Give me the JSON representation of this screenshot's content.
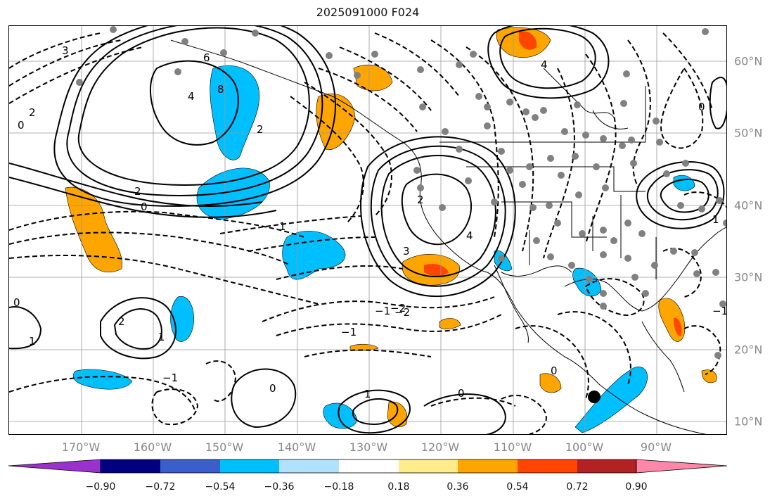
{
  "title": "2025091000 F024",
  "lon_labels": [
    "170°W",
    "160°W",
    "150°W",
    "140°W",
    "130°W",
    "120°W",
    "110°W",
    "100°W",
    "90°W"
  ],
  "lat_labels": [
    "60°N",
    "50°N",
    "40°N",
    "30°N",
    "20°N",
    "10°N"
  ],
  "colorbar": {
    "ticks": [
      "−0.90",
      "−0.72",
      "−0.54",
      "−0.36",
      "−0.18",
      "0.18",
      "0.36",
      "0.54",
      "0.72",
      "0.90"
    ],
    "colors": [
      "#9932cc",
      "#000080",
      "#3a5fcd",
      "#00bfff",
      "#b0e2ff",
      "#ffffff",
      "#ffec8b",
      "#ffa500",
      "#ff4500",
      "#b22222",
      "#ff88aa"
    ]
  },
  "contour_labels": [
    "6",
    "4",
    "3",
    "2",
    "1",
    "0",
    "−1",
    "−2",
    "8",
    "2",
    "4",
    "3",
    "2",
    "1",
    "0",
    "−2",
    "−1",
    "0",
    "1",
    "0",
    "4",
    "2",
    "1",
    "0",
    "−1",
    "2",
    "0",
    "1",
    "0",
    "−1"
  ],
  "colors": {
    "blue": "#00bfff",
    "orange": "#ffa500",
    "red": "#ff4500",
    "dot": "#808080"
  }
}
